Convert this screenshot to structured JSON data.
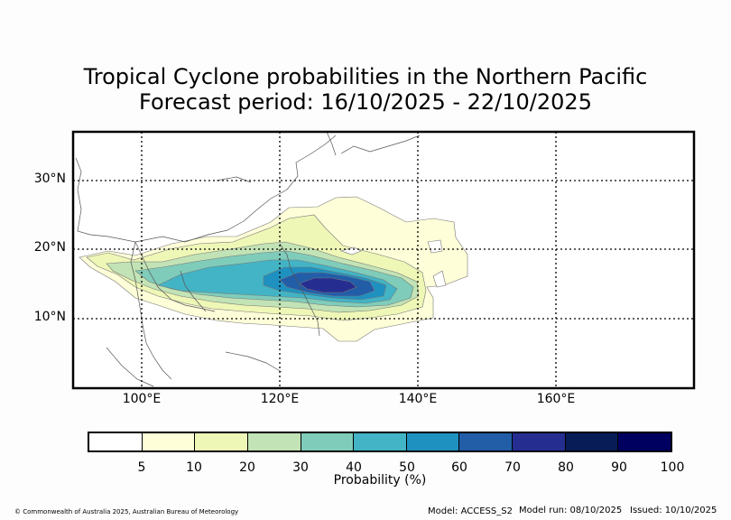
{
  "title": {
    "line1": "Tropical Cyclone probabilities in the Northern Pacific",
    "line2": "Forecast period: 16/10/2025 - 22/10/2025"
  },
  "map": {
    "lat_labels": [
      "30°N",
      "20°N",
      "10°N"
    ],
    "lon_labels": [
      "100°E",
      "120°E",
      "140°E",
      "160°E"
    ],
    "lon_range": [
      90,
      180
    ],
    "lat_range": [
      0,
      37
    ]
  },
  "colorbar": {
    "label": "Probability (%)",
    "ticks": [
      "5",
      "10",
      "20",
      "30",
      "40",
      "50",
      "60",
      "70",
      "80",
      "90",
      "100"
    ],
    "colors": [
      "#ffffff",
      "#fefed8",
      "#eef7b6",
      "#c2e3b5",
      "#7fccba",
      "#42b4c5",
      "#1f91c0",
      "#225da8",
      "#252e90",
      "#081d58",
      "#000060"
    ]
  },
  "footer": {
    "copyright": "© Commonwealth of Australia 2025, Australian Bureau of Meteorology",
    "model": "Model: ACCESS_S2",
    "model_run": "Model run: 08/10/2025",
    "issued": "Issued: 10/10/2025"
  }
}
